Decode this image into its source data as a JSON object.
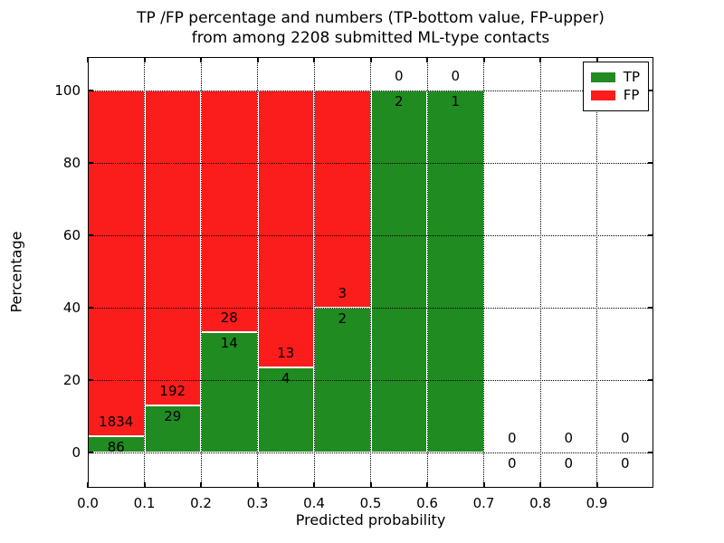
{
  "figure": {
    "background": "#ffffff"
  },
  "chart_data": {
    "type": "bar",
    "stacked": true,
    "title_line1": "TP /FP percentage and numbers (TP-bottom value, FP-upper)",
    "title_line2": "from among 2208 submitted ML-type contacts",
    "xlabel": "Predicted probability",
    "ylabel": "Percentage",
    "total_contacts": 2208,
    "x_tick_labels": [
      "0.0",
      "0.1",
      "0.2",
      "0.3",
      "0.4",
      "0.5",
      "0.6",
      "0.7",
      "0.8",
      "0.9"
    ],
    "y_tick_labels": [
      "0",
      "20",
      "40",
      "60",
      "80",
      "100"
    ],
    "y_ticks": [
      0,
      20,
      40,
      60,
      80,
      100
    ],
    "xlim": [
      0.0,
      1.0
    ],
    "ylim": [
      -9.75,
      109.25
    ],
    "bin_width": 0.1,
    "grid": "dotted",
    "legend_position": "upper right",
    "legend": [
      {
        "label": "TP",
        "color": "#208b20"
      },
      {
        "label": "FP",
        "color": "#fb1c1c"
      }
    ],
    "bins": [
      {
        "x0": 0.0,
        "tp": 86,
        "fp": 1834
      },
      {
        "x0": 0.1,
        "tp": 29,
        "fp": 192
      },
      {
        "x0": 0.2,
        "tp": 14,
        "fp": 28
      },
      {
        "x0": 0.3,
        "tp": 4,
        "fp": 13
      },
      {
        "x0": 0.4,
        "tp": 2,
        "fp": 3
      },
      {
        "x0": 0.5,
        "tp": 2,
        "fp": 0
      },
      {
        "x0": 0.6,
        "tp": 1,
        "fp": 0
      },
      {
        "x0": 0.7,
        "tp": 0,
        "fp": 0
      },
      {
        "x0": 0.8,
        "tp": 0,
        "fp": 0
      },
      {
        "x0": 0.9,
        "tp": 0,
        "fp": 0
      }
    ]
  },
  "colors": {
    "tp": "#208b20",
    "fp": "#fb1c1c",
    "grid": "#000000",
    "text": "#000000"
  }
}
